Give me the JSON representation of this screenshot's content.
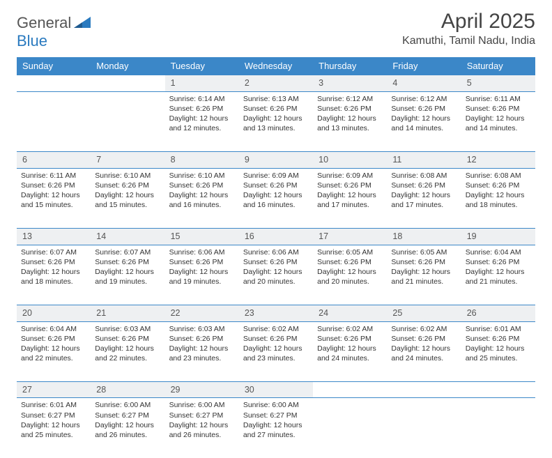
{
  "logo": {
    "text1": "General",
    "text2": "Blue"
  },
  "title": "April 2025",
  "location": "Kamuthi, Tamil Nadu, India",
  "day_headers": [
    "Sunday",
    "Monday",
    "Tuesday",
    "Wednesday",
    "Thursday",
    "Friday",
    "Saturday"
  ],
  "colors": {
    "header_bg": "#3b87c8",
    "header_text": "#ffffff",
    "daynum_bg": "#eef0f2",
    "border": "#3b87c8",
    "text": "#333333",
    "logo_gray": "#555555",
    "logo_blue": "#2a7abf"
  },
  "weeks": [
    [
      null,
      null,
      {
        "n": "1",
        "sunrise": "6:14 AM",
        "sunset": "6:26 PM",
        "daylight": "12 hours and 12 minutes."
      },
      {
        "n": "2",
        "sunrise": "6:13 AM",
        "sunset": "6:26 PM",
        "daylight": "12 hours and 13 minutes."
      },
      {
        "n": "3",
        "sunrise": "6:12 AM",
        "sunset": "6:26 PM",
        "daylight": "12 hours and 13 minutes."
      },
      {
        "n": "4",
        "sunrise": "6:12 AM",
        "sunset": "6:26 PM",
        "daylight": "12 hours and 14 minutes."
      },
      {
        "n": "5",
        "sunrise": "6:11 AM",
        "sunset": "6:26 PM",
        "daylight": "12 hours and 14 minutes."
      }
    ],
    [
      {
        "n": "6",
        "sunrise": "6:11 AM",
        "sunset": "6:26 PM",
        "daylight": "12 hours and 15 minutes."
      },
      {
        "n": "7",
        "sunrise": "6:10 AM",
        "sunset": "6:26 PM",
        "daylight": "12 hours and 15 minutes."
      },
      {
        "n": "8",
        "sunrise": "6:10 AM",
        "sunset": "6:26 PM",
        "daylight": "12 hours and 16 minutes."
      },
      {
        "n": "9",
        "sunrise": "6:09 AM",
        "sunset": "6:26 PM",
        "daylight": "12 hours and 16 minutes."
      },
      {
        "n": "10",
        "sunrise": "6:09 AM",
        "sunset": "6:26 PM",
        "daylight": "12 hours and 17 minutes."
      },
      {
        "n": "11",
        "sunrise": "6:08 AM",
        "sunset": "6:26 PM",
        "daylight": "12 hours and 17 minutes."
      },
      {
        "n": "12",
        "sunrise": "6:08 AM",
        "sunset": "6:26 PM",
        "daylight": "12 hours and 18 minutes."
      }
    ],
    [
      {
        "n": "13",
        "sunrise": "6:07 AM",
        "sunset": "6:26 PM",
        "daylight": "12 hours and 18 minutes."
      },
      {
        "n": "14",
        "sunrise": "6:07 AM",
        "sunset": "6:26 PM",
        "daylight": "12 hours and 19 minutes."
      },
      {
        "n": "15",
        "sunrise": "6:06 AM",
        "sunset": "6:26 PM",
        "daylight": "12 hours and 19 minutes."
      },
      {
        "n": "16",
        "sunrise": "6:06 AM",
        "sunset": "6:26 PM",
        "daylight": "12 hours and 20 minutes."
      },
      {
        "n": "17",
        "sunrise": "6:05 AM",
        "sunset": "6:26 PM",
        "daylight": "12 hours and 20 minutes."
      },
      {
        "n": "18",
        "sunrise": "6:05 AM",
        "sunset": "6:26 PM",
        "daylight": "12 hours and 21 minutes."
      },
      {
        "n": "19",
        "sunrise": "6:04 AM",
        "sunset": "6:26 PM",
        "daylight": "12 hours and 21 minutes."
      }
    ],
    [
      {
        "n": "20",
        "sunrise": "6:04 AM",
        "sunset": "6:26 PM",
        "daylight": "12 hours and 22 minutes."
      },
      {
        "n": "21",
        "sunrise": "6:03 AM",
        "sunset": "6:26 PM",
        "daylight": "12 hours and 22 minutes."
      },
      {
        "n": "22",
        "sunrise": "6:03 AM",
        "sunset": "6:26 PM",
        "daylight": "12 hours and 23 minutes."
      },
      {
        "n": "23",
        "sunrise": "6:02 AM",
        "sunset": "6:26 PM",
        "daylight": "12 hours and 23 minutes."
      },
      {
        "n": "24",
        "sunrise": "6:02 AM",
        "sunset": "6:26 PM",
        "daylight": "12 hours and 24 minutes."
      },
      {
        "n": "25",
        "sunrise": "6:02 AM",
        "sunset": "6:26 PM",
        "daylight": "12 hours and 24 minutes."
      },
      {
        "n": "26",
        "sunrise": "6:01 AM",
        "sunset": "6:26 PM",
        "daylight": "12 hours and 25 minutes."
      }
    ],
    [
      {
        "n": "27",
        "sunrise": "6:01 AM",
        "sunset": "6:27 PM",
        "daylight": "12 hours and 25 minutes."
      },
      {
        "n": "28",
        "sunrise": "6:00 AM",
        "sunset": "6:27 PM",
        "daylight": "12 hours and 26 minutes."
      },
      {
        "n": "29",
        "sunrise": "6:00 AM",
        "sunset": "6:27 PM",
        "daylight": "12 hours and 26 minutes."
      },
      {
        "n": "30",
        "sunrise": "6:00 AM",
        "sunset": "6:27 PM",
        "daylight": "12 hours and 27 minutes."
      },
      null,
      null,
      null
    ]
  ],
  "labels": {
    "sunrise": "Sunrise:",
    "sunset": "Sunset:",
    "daylight": "Daylight:"
  }
}
